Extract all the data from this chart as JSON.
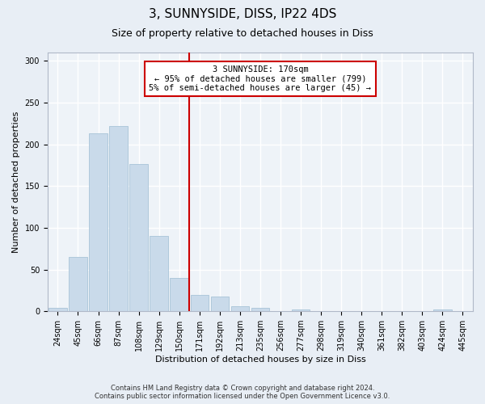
{
  "title": "3, SUNNYSIDE, DISS, IP22 4DS",
  "subtitle": "Size of property relative to detached houses in Diss",
  "xlabel": "Distribution of detached houses by size in Diss",
  "ylabel": "Number of detached properties",
  "categories": [
    "24sqm",
    "45sqm",
    "66sqm",
    "87sqm",
    "108sqm",
    "129sqm",
    "150sqm",
    "171sqm",
    "192sqm",
    "213sqm",
    "235sqm",
    "256sqm",
    "277sqm",
    "298sqm",
    "319sqm",
    "340sqm",
    "361sqm",
    "382sqm",
    "403sqm",
    "424sqm",
    "445sqm"
  ],
  "values": [
    4,
    65,
    213,
    222,
    176,
    90,
    40,
    20,
    18,
    6,
    4,
    0,
    2,
    0,
    0,
    0,
    0,
    0,
    0,
    2,
    0
  ],
  "bar_color": "#c9daea",
  "bar_edgecolor": "#a8c4d8",
  "vline_x": 6.5,
  "vline_color": "#cc0000",
  "annotation_text": "3 SUNNYSIDE: 170sqm\n← 95% of detached houses are smaller (799)\n5% of semi-detached houses are larger (45) →",
  "annotation_box_edgecolor": "#cc0000",
  "ylim": [
    0,
    310
  ],
  "yticks": [
    0,
    50,
    100,
    150,
    200,
    250,
    300
  ],
  "footer": "Contains HM Land Registry data © Crown copyright and database right 2024.\nContains public sector information licensed under the Open Government Licence v3.0.",
  "bg_color": "#e8eef5",
  "plot_bg_color": "#eef3f8",
  "grid_color": "#ffffff",
  "title_fontsize": 11,
  "subtitle_fontsize": 9,
  "label_fontsize": 8,
  "tick_fontsize": 7,
  "annotation_fontsize": 7.5
}
